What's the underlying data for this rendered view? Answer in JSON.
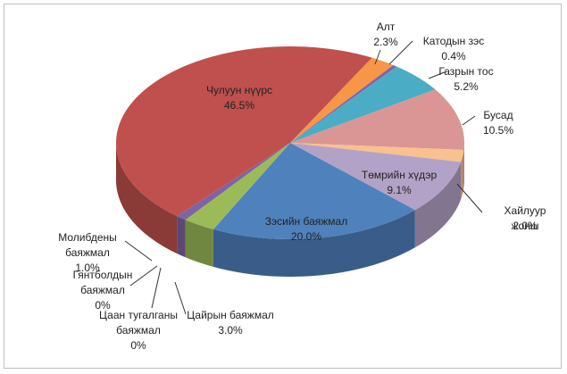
{
  "chart_data": {
    "type": "pie",
    "categories": [
      "Алт",
      "Катодын зэс",
      "Газрын тос",
      "Бусад",
      "Хайлуур жонш",
      "Төмрийн хүдэр",
      "Зэсийн баяжмал",
      "Цайрын баяжмал",
      "Цаан тугалганы баяжмал",
      "Гянтболдын баяжмал",
      "Молибдены баяжмал",
      "Чулуун нүүрс"
    ],
    "values": [
      2.3,
      0.4,
      5.2,
      10.5,
      2.0,
      9.1,
      20.0,
      3.0,
      0,
      0,
      1.0,
      46.5
    ],
    "value_labels": [
      "2.3%",
      "0.4%",
      "5.2%",
      "10.5%",
      "2.0%",
      "9.1%",
      "20.0%",
      "3.0%",
      "0%",
      "0%",
      "1.0%",
      "46.5%"
    ],
    "colors": [
      "#f79646",
      "#8064a2",
      "#4bacc6",
      "#d99694",
      "#fac090",
      "#b3a2c7",
      "#4f81bd",
      "#9bbb59",
      "#4f81bd",
      "#4bacc6",
      "#8064a2",
      "#c0504d"
    ]
  }
}
